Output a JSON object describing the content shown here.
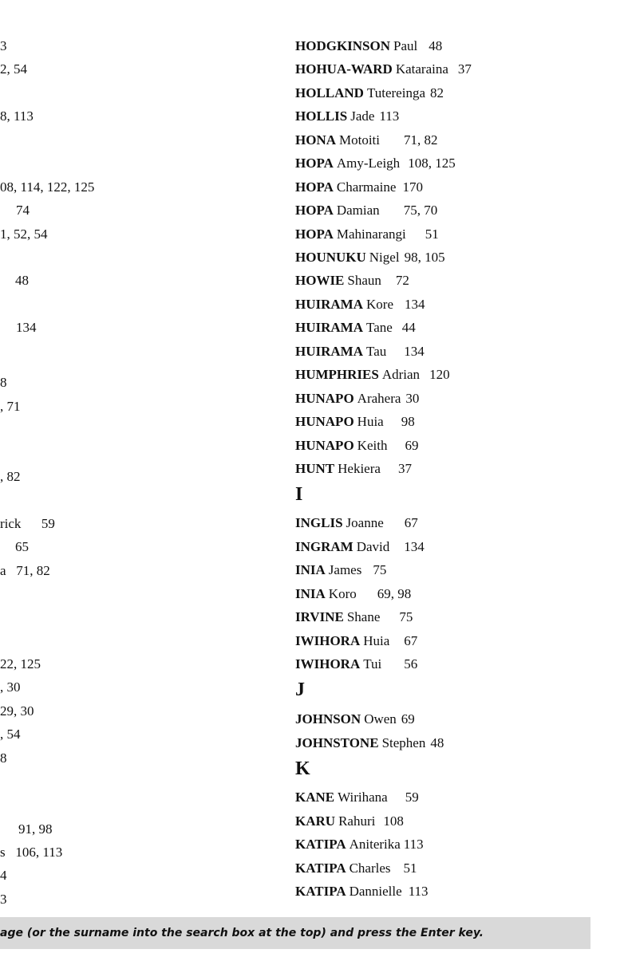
{
  "left_fragments": [
    "3",
    "2, 54",
    "8, 113",
    "08, 114, 122, 125",
    "74",
    "1, 52, 54",
    "48",
    "134",
    "8",
    ", 71",
    ", 82",
    "rick      59",
    "65",
    "a   71, 82",
    "22, 125",
    ", 30",
    "29, 30",
    ", 54",
    "8",
    "91, 98",
    "s   106, 113",
    "4",
    "3"
  ],
  "entries": [
    {
      "surname": "HODGKINSON",
      "given": "Paul",
      "pages": "48"
    },
    {
      "surname": "HOHUA-WARD",
      "given": "Kataraina",
      "pages": "37"
    },
    {
      "surname": "HOLLAND",
      "given": "Tutereinga",
      "pages": "82"
    },
    {
      "surname": "HOLLIS",
      "given": "Jade",
      "pages": "113"
    },
    {
      "surname": "HONA",
      "given": "Motoiti",
      "pages": "71, 82"
    },
    {
      "surname": "HOPA",
      "given": "Amy-Leigh",
      "pages": "108, 125"
    },
    {
      "surname": "HOPA",
      "given": "Charmaine",
      "pages": "170"
    },
    {
      "surname": "HOPA",
      "given": "Damian",
      "pages": "75, 70"
    },
    {
      "surname": "HOPA",
      "given": "Mahinarangi",
      "pages": "51"
    },
    {
      "surname": "HOUNUKU",
      "given": "Nigel",
      "pages": "98, 105"
    },
    {
      "surname": "HOWIE",
      "given": "Shaun",
      "pages": "72"
    },
    {
      "surname": "HUIRAMA",
      "given": "Kore",
      "pages": "134"
    },
    {
      "surname": "HUIRAMA",
      "given": "Tane",
      "pages": "44"
    },
    {
      "surname": "HUIRAMA",
      "given": "Tau",
      "pages": "134"
    },
    {
      "surname": "HUMPHRIES",
      "given": "Adrian",
      "pages": "120"
    },
    {
      "surname": "HUNAPO",
      "given": "Arahera",
      "pages": "30"
    },
    {
      "surname": "HUNAPO",
      "given": "Huia",
      "pages": "98"
    },
    {
      "surname": "HUNAPO",
      "given": "Keith",
      "pages": "69"
    },
    {
      "surname": "HUNT",
      "given": "Hekiera",
      "pages": "37"
    },
    {
      "heading": "I"
    },
    {
      "surname": "INGLIS",
      "given": "Joanne",
      "pages": "67"
    },
    {
      "surname": "INGRAM",
      "given": "David",
      "pages": "134"
    },
    {
      "surname": "INIA",
      "given": "James",
      "pages": "75"
    },
    {
      "surname": "INIA",
      "given": "Koro",
      "pages": "69, 98"
    },
    {
      "surname": "IRVINE",
      "given": "Shane",
      "pages": "75"
    },
    {
      "surname": "IWIHORA",
      "given": "Huia",
      "pages": "67"
    },
    {
      "surname": "IWIHORA",
      "given": "Tui",
      "pages": "56"
    },
    {
      "heading": "J"
    },
    {
      "surname": "JOHNSON",
      "given": "Owen",
      "pages": "69"
    },
    {
      "surname": "JOHNSTONE",
      "given": "Stephen",
      "pages": "48"
    },
    {
      "heading": "K"
    },
    {
      "surname": "KANE",
      "given": "Wirihana",
      "pages": "59"
    },
    {
      "surname": "KARU",
      "given": "Rahuri",
      "pages": "108"
    },
    {
      "surname": "KATIPA",
      "given": "Aniterika",
      "pages": "113"
    },
    {
      "surname": "KATIPA",
      "given": "Charles",
      "pages": "51"
    },
    {
      "surname": "KATIPA",
      "given": "Dannielle",
      "pages": "113"
    }
  ],
  "instruction_bar": {
    "text": "age (or the surname into the search box at the top) and press the Enter key.",
    "background": "#d9d9d9"
  }
}
